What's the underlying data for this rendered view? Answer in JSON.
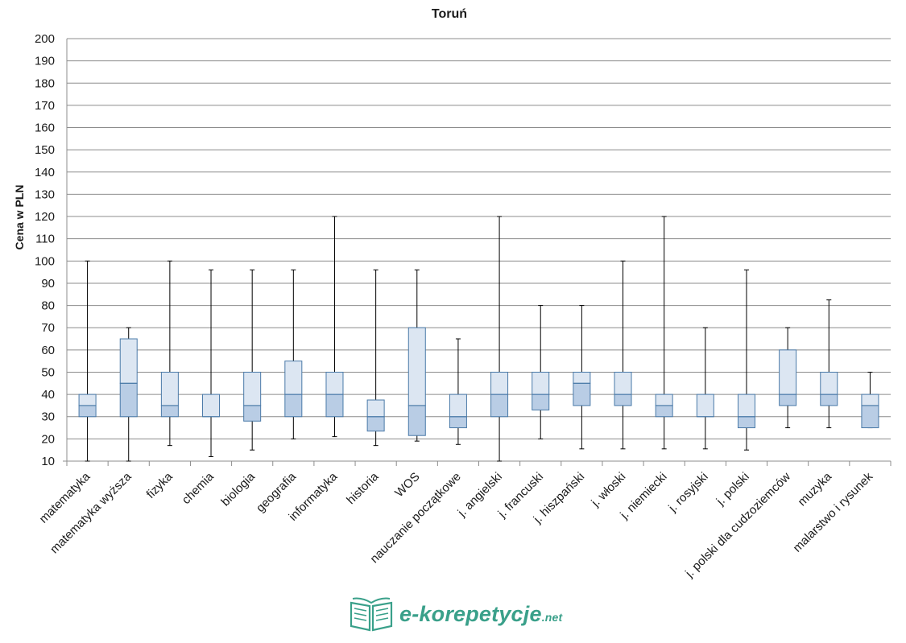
{
  "chart_data": {
    "type": "boxplot",
    "title": "Toruń",
    "xlabel": "",
    "ylabel": "Cena w PLN",
    "ylim": [
      10,
      200
    ],
    "yticks": [
      10,
      20,
      30,
      40,
      50,
      60,
      70,
      80,
      90,
      100,
      110,
      120,
      130,
      140,
      150,
      160,
      170,
      180,
      190,
      200
    ],
    "grid": true,
    "categories": [
      "matematyka",
      "matematyka wyższa",
      "fizyka",
      "chemia",
      "biologia",
      "geografia",
      "informatyka",
      "historia",
      "WOS",
      "nauczanie początkowe",
      "j. angielski",
      "j. francuski",
      "j. hiszpański",
      "j. włoski",
      "j. niemiecki",
      "j. rosyjski",
      "j. polski",
      "j. polski dla cudzoziemców",
      "muzyka",
      "malarstwo i rysunek"
    ],
    "boxes": [
      {
        "min": 10,
        "q1": 30,
        "median": 35,
        "q3": 40,
        "max": 100
      },
      {
        "min": 10,
        "q1": 30,
        "median": 45,
        "q3": 65,
        "max": 70
      },
      {
        "min": 17,
        "q1": 30,
        "median": 35,
        "q3": 50,
        "max": 100
      },
      {
        "min": 12,
        "q1": 30,
        "median": 30,
        "q3": 40,
        "max": 96
      },
      {
        "min": 15,
        "q1": 28,
        "median": 35,
        "q3": 50,
        "max": 96
      },
      {
        "min": 20,
        "q1": 30,
        "median": 40,
        "q3": 55,
        "max": 96
      },
      {
        "min": 21,
        "q1": 30,
        "median": 40,
        "q3": 50,
        "max": 120
      },
      {
        "min": 17,
        "q1": 23.5,
        "median": 30,
        "q3": 37.5,
        "max": 96
      },
      {
        "min": 19,
        "q1": 21.5,
        "median": 35,
        "q3": 70,
        "max": 96
      },
      {
        "min": 17.5,
        "q1": 25,
        "median": 30,
        "q3": 40,
        "max": 65
      },
      {
        "min": 10,
        "q1": 30,
        "median": 40,
        "q3": 50,
        "max": 120
      },
      {
        "min": 20,
        "q1": 33,
        "median": 40,
        "q3": 50,
        "max": 80
      },
      {
        "min": 15.5,
        "q1": 35,
        "median": 45,
        "q3": 50,
        "max": 80
      },
      {
        "min": 15.5,
        "q1": 35,
        "median": 40,
        "q3": 50,
        "max": 100
      },
      {
        "min": 15.5,
        "q1": 30,
        "median": 35,
        "q3": 40,
        "max": 120
      },
      {
        "min": 15.5,
        "q1": 30,
        "median": 30,
        "q3": 40,
        "max": 70
      },
      {
        "min": 15,
        "q1": 25,
        "median": 30,
        "q3": 40,
        "max": 96
      },
      {
        "min": 25,
        "q1": 35,
        "median": 40,
        "q3": 60,
        "max": 70
      },
      {
        "min": 25,
        "q1": 35,
        "median": 40,
        "q3": 50,
        "max": 82.5
      },
      {
        "min": 25,
        "q1": 25,
        "median": 35,
        "q3": 40,
        "max": 50
      }
    ],
    "colors": {
      "upper_box": "#dce6f2",
      "lower_box": "#b9cde5",
      "box_stroke": "#4a7aa8",
      "whisker": "#000000",
      "grid": "#8c8c8c"
    }
  },
  "branding": {
    "logo_text": "e-korepetycje",
    "logo_suffix": ".net",
    "logo_color": "#3aa08a",
    "logo_icon": "open-book-icon"
  }
}
